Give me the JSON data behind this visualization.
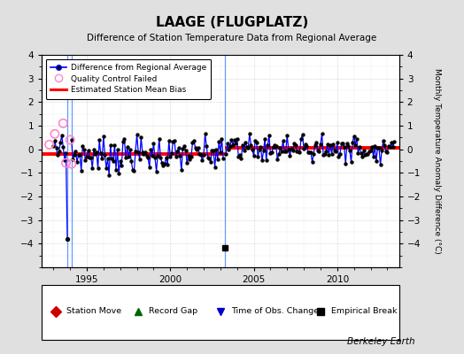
{
  "title": "LAAGE (FLUGPLATZ)",
  "subtitle": "Difference of Station Temperature Data from Regional Average",
  "ylabel": "Monthly Temperature Anomaly Difference (°C)",
  "background_color": "#e0e0e0",
  "plot_bg_color": "#ffffff",
  "ylim": [
    -5,
    4
  ],
  "yticks": [
    -4,
    -3,
    -2,
    -1,
    0,
    1,
    2,
    3,
    4
  ],
  "xlim_start": 1992.3,
  "xlim_end": 2013.7,
  "xticks": [
    1995,
    2000,
    2005,
    2010
  ],
  "vertical_line1_x": 1993.83,
  "vertical_line2_x": 1994.08,
  "vertical_line3_x": 2003.25,
  "bias1_start": 1992.3,
  "bias1_end": 2003.25,
  "bias1_val": -0.2,
  "bias2_start": 2003.25,
  "bias2_end": 2013.7,
  "bias2_val": 0.05,
  "empirical_break_x": 2003.25,
  "empirical_break_y": -4.18,
  "berkeley_earth_label": "Berkeley Earth"
}
